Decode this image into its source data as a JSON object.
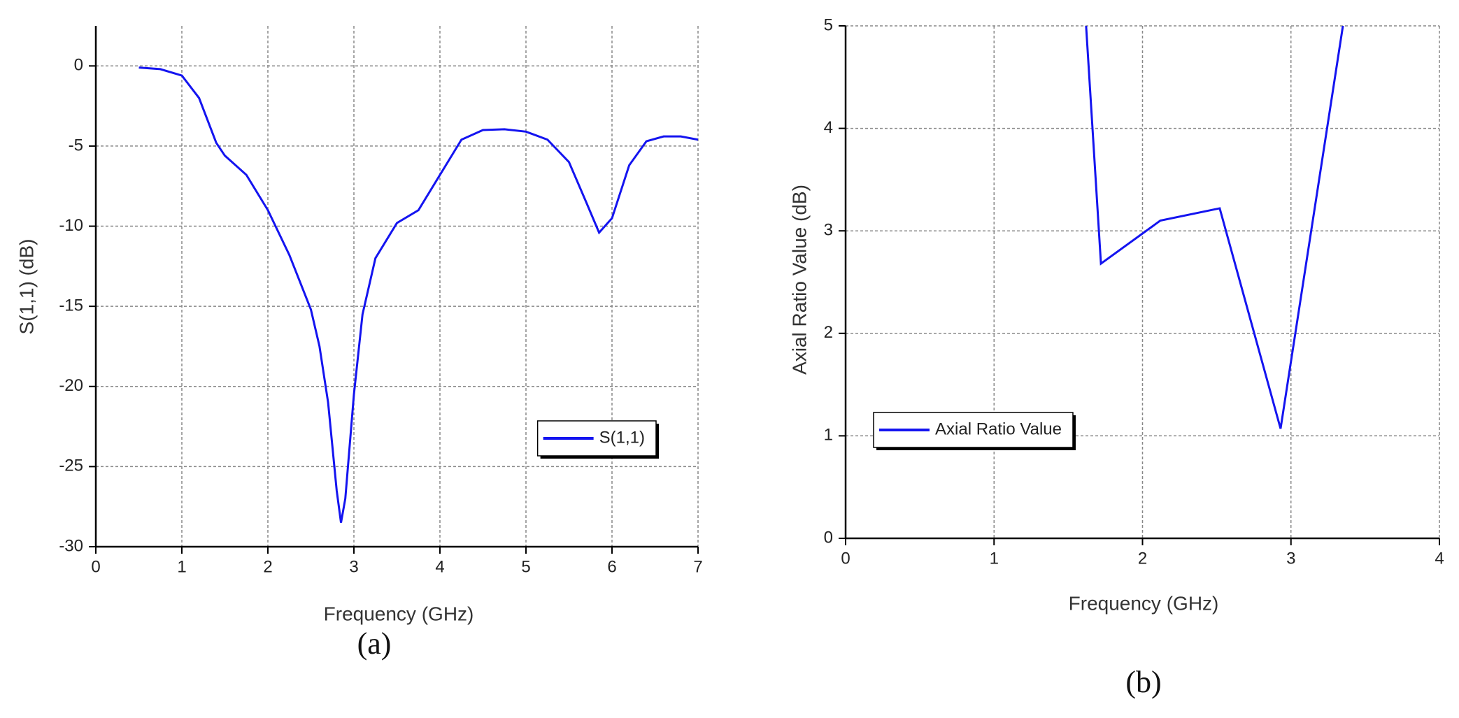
{
  "chart_data": [
    {
      "type": "line",
      "caption": "(a)",
      "x_label": "Frequency (GHz)",
      "y_label": "S(1,1) (dB)",
      "x": [
        0.5,
        0.75,
        1.0,
        1.2,
        1.4,
        1.5,
        1.75,
        2.0,
        2.25,
        2.5,
        2.6,
        2.7,
        2.8,
        2.85,
        2.9,
        3.0,
        3.1,
        3.25,
        3.5,
        3.75,
        4.0,
        4.25,
        4.5,
        4.75,
        5.0,
        5.25,
        5.5,
        5.7,
        5.85,
        6.0,
        6.2,
        6.4,
        6.6,
        6.8,
        7.0
      ],
      "series": [
        {
          "name": "S(1,1)",
          "color": "#1414f0",
          "values": [
            -0.1,
            -0.2,
            -0.6,
            -2.0,
            -4.8,
            -5.6,
            -6.8,
            -9.0,
            -11.8,
            -15.2,
            -17.5,
            -21.0,
            -26.5,
            -28.5,
            -27.0,
            -20.5,
            -15.5,
            -12.0,
            -9.8,
            -9.0,
            -6.8,
            -4.6,
            -4.0,
            -3.95,
            -4.1,
            -4.6,
            -6.0,
            -8.5,
            -10.4,
            -9.5,
            -6.2,
            -4.7,
            -4.4,
            -4.4,
            -4.6
          ]
        }
      ],
      "xlim": [
        0,
        7
      ],
      "ylim": [
        -30,
        2.5
      ],
      "xticks": [
        0,
        1,
        2,
        3,
        4,
        5,
        6,
        7
      ],
      "yticks": [
        0,
        -5,
        -10,
        -15,
        -20,
        -25,
        -30
      ],
      "grid": true,
      "legend_position": "lower right"
    },
    {
      "type": "line",
      "caption": "(b)",
      "x_label": "Frequency (GHz)",
      "y_label": "Axial Ratio Value (dB)",
      "x": [
        1.62,
        1.72,
        2.12,
        2.52,
        2.93,
        3.35
      ],
      "series": [
        {
          "name": "Axial Ratio Value",
          "color": "#1414f0",
          "values": [
            5.0,
            2.68,
            3.1,
            3.22,
            1.07,
            5.0
          ]
        }
      ],
      "xlim": [
        0,
        4
      ],
      "ylim": [
        0,
        5
      ],
      "xticks": [
        0,
        1,
        2,
        3,
        4
      ],
      "yticks": [
        0,
        1,
        2,
        3,
        4,
        5
      ],
      "grid": true,
      "legend_position": "lower left"
    }
  ]
}
